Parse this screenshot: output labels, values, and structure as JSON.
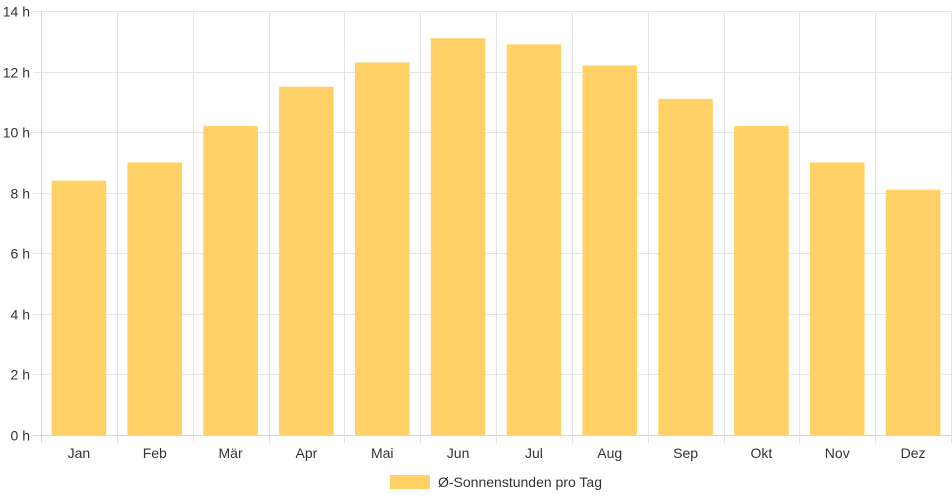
{
  "chart_data": {
    "type": "bar",
    "categories": [
      "Jan",
      "Feb",
      "Mär",
      "Apr",
      "Mai",
      "Jun",
      "Jul",
      "Aug",
      "Sep",
      "Okt",
      "Nov",
      "Dez"
    ],
    "series": [
      {
        "name": "Ø-Sonnenstunden pro Tag",
        "values": [
          8.4,
          9.0,
          10.2,
          11.5,
          12.3,
          13.1,
          12.9,
          12.2,
          11.1,
          10.2,
          9.0,
          8.1
        ],
        "color": "#ffd166"
      }
    ],
    "yticks": [
      "0 h",
      "2 h",
      "4 h",
      "6 h",
      "8 h",
      "10 h",
      "12 h",
      "14 h"
    ],
    "ylim": [
      0,
      14
    ],
    "grid": true,
    "legend_position": "bottom"
  }
}
